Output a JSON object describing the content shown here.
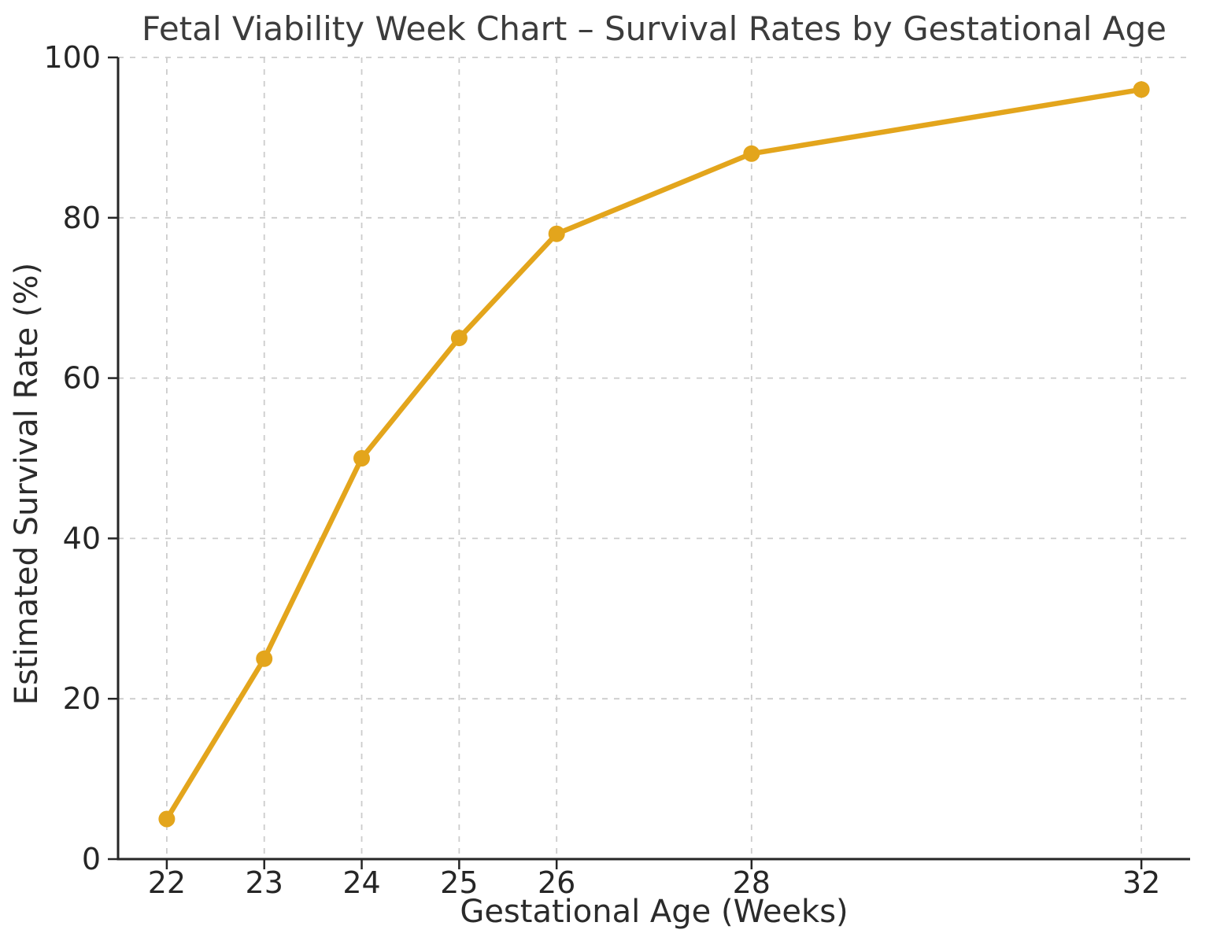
{
  "chart_data": {
    "type": "line",
    "title": "Fetal Viability Week Chart – Survival Rates by Gestational Age",
    "xlabel": "Gestational Age (Weeks)",
    "ylabel": "Estimated Survival Rate (%)",
    "x": [
      22,
      23,
      24,
      25,
      26,
      28,
      32
    ],
    "y": [
      5,
      25,
      50,
      65,
      78,
      88,
      96
    ],
    "xticks": [
      22,
      23,
      24,
      25,
      26,
      28,
      32
    ],
    "yticks": [
      0,
      20,
      40,
      60,
      80,
      100
    ],
    "xlim": [
      21.5,
      32.5
    ],
    "ylim": [
      0,
      100
    ],
    "grid": "dashed both",
    "legend": "none",
    "marker": "circle",
    "colors": {
      "line": "#E3A51C",
      "marker": "#E3A51C",
      "grid": "#cccccc",
      "spine": "#262626",
      "tick": "#262626",
      "title_text": "#3c3c3c",
      "label_text": "#2b2b2b",
      "background": "#ffffff"
    }
  }
}
